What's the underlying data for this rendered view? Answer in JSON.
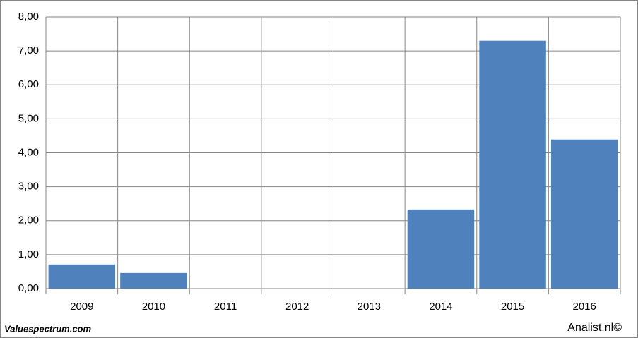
{
  "chart_data": {
    "type": "bar",
    "categories": [
      "2009",
      "2010",
      "2011",
      "2012",
      "2013",
      "2014",
      "2015",
      "2016"
    ],
    "values": [
      0.71,
      0.46,
      null,
      null,
      null,
      2.33,
      7.3,
      4.39
    ],
    "color": "#4f81bd",
    "ylim": [
      0,
      8
    ],
    "yticks": [
      {
        "value": 0,
        "label": "0,00"
      },
      {
        "value": 1,
        "label": "1,00"
      },
      {
        "value": 2,
        "label": "2,00"
      },
      {
        "value": 3,
        "label": "3,00"
      },
      {
        "value": 4,
        "label": "4,00"
      },
      {
        "value": 5,
        "label": "5,00"
      },
      {
        "value": 6,
        "label": "6,00"
      },
      {
        "value": 7,
        "label": "7,00"
      },
      {
        "value": 8,
        "label": "8,00"
      }
    ],
    "grid": true,
    "source_left": "Valuespectrum.com",
    "source_right": "Analist.nl©"
  }
}
